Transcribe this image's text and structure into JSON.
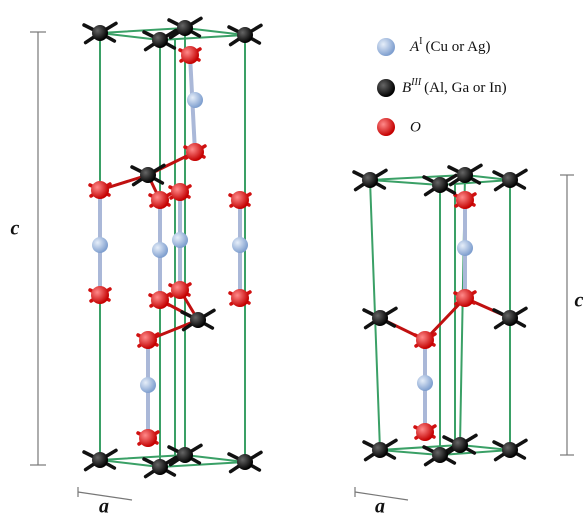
{
  "legend": [
    {
      "symbol": "A",
      "superscript": "I",
      "text": "(Cu or Ag)"
    },
    {
      "symbol": "B",
      "superscript": "III",
      "text": "(Al, Ga or In)"
    },
    {
      "symbol": "O"
    }
  ],
  "left_structure": {
    "c_label": "c",
    "a_label": "a"
  },
  "right_structure": {
    "c_label": "c",
    "a_label": "a"
  }
}
